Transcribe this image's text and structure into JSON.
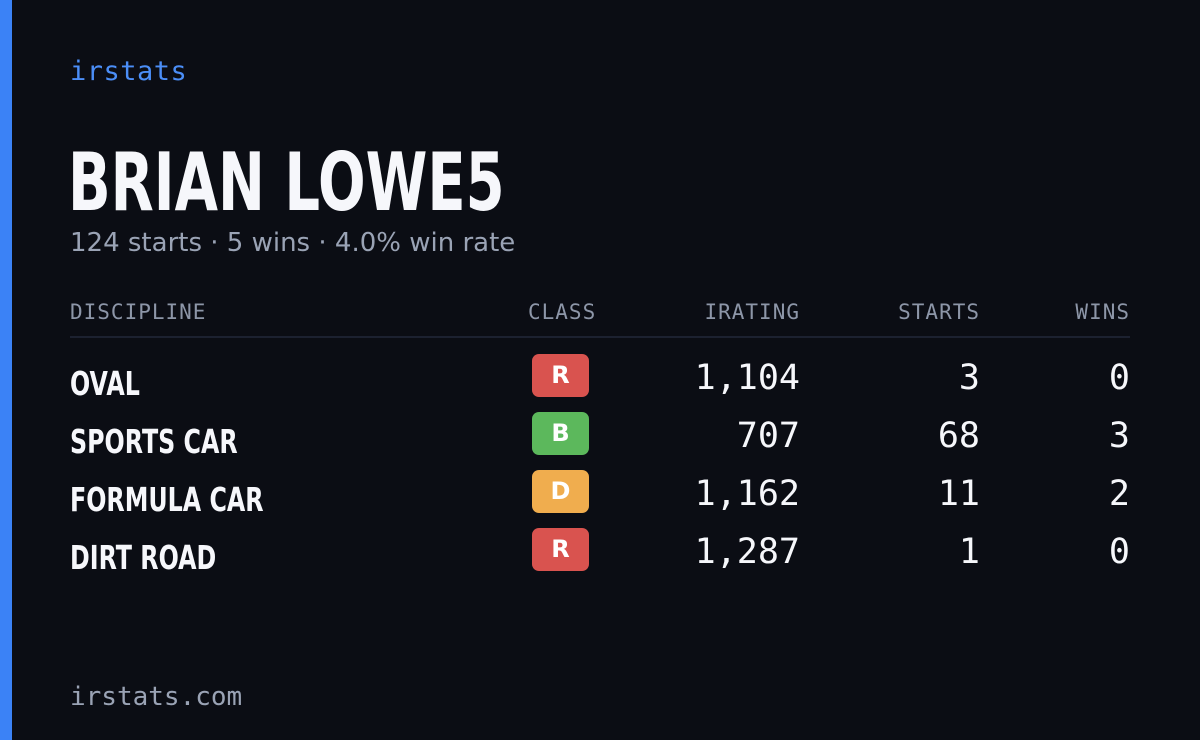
{
  "brand": "irstats",
  "player": {
    "name": "BRIAN LOWE5",
    "summary": "124 starts · 5 wins · 4.0% win rate"
  },
  "table": {
    "headers": {
      "discipline": "DISCIPLINE",
      "class": "CLASS",
      "irating": "IRATING",
      "starts": "STARTS",
      "wins": "WINS"
    },
    "rows": [
      {
        "discipline": "OVAL",
        "class": "R",
        "class_color": "#d9534f",
        "irating": "1,104",
        "starts": "3",
        "wins": "0"
      },
      {
        "discipline": "SPORTS CAR",
        "class": "B",
        "class_color": "#5cb85c",
        "irating": "707",
        "starts": "68",
        "wins": "3"
      },
      {
        "discipline": "FORMULA CAR",
        "class": "D",
        "class_color": "#f0ad4e",
        "irating": "1,162",
        "starts": "11",
        "wins": "2"
      },
      {
        "discipline": "DIRT ROAD",
        "class": "R",
        "class_color": "#d9534f",
        "irating": "1,287",
        "starts": "1",
        "wins": "0"
      }
    ]
  },
  "footer": "irstats.com",
  "colors": {
    "accent": "#3b82f6",
    "background": "#0b0d14"
  }
}
